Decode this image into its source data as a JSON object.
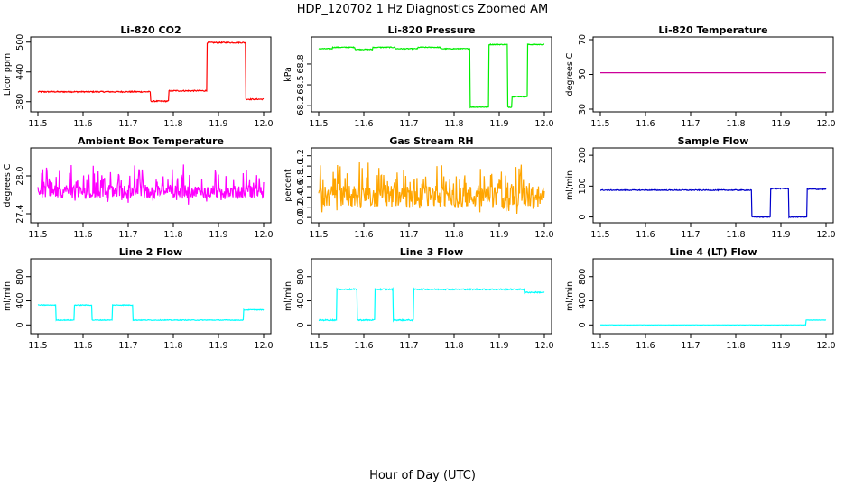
{
  "figure": {
    "title": "HDP_120702  1 Hz Diagnostics Zoomed AM",
    "xlabel": "Hour of Day (UTC)"
  },
  "chart_data": [
    {
      "type": "line",
      "title": "Li-820 CO2",
      "ylabel": "Licor ppm",
      "color": "#ff0000",
      "xlim": [
        11.5,
        12.0
      ],
      "ylim": [
        365,
        505
      ],
      "xticks": [
        "11.5",
        "11.6",
        "11.7",
        "11.8",
        "11.9",
        "12.0"
      ],
      "yticks": [
        "380",
        "440",
        "500"
      ],
      "steps": [
        [
          11.5,
          11.75,
          400
        ],
        [
          11.75,
          11.79,
          381
        ],
        [
          11.79,
          11.875,
          402
        ],
        [
          11.875,
          11.96,
          499
        ],
        [
          11.96,
          12.0,
          385
        ]
      ],
      "noise": 1.2,
      "spikes": 0
    },
    {
      "type": "line",
      "title": "Li-820 Pressure",
      "ylabel": "kPa",
      "color": "#00ee00",
      "xlim": [
        11.5,
        12.0
      ],
      "ylim": [
        68.15,
        69.15
      ],
      "xticks": [
        "11.5",
        "11.6",
        "11.7",
        "11.8",
        "11.9",
        "12.0"
      ],
      "yticks": [
        "68.2",
        "68.5",
        "68.8"
      ],
      "steps": [
        [
          11.5,
          11.53,
          69.02
        ],
        [
          11.53,
          11.58,
          69.04
        ],
        [
          11.58,
          11.62,
          69.01
        ],
        [
          11.62,
          11.67,
          69.04
        ],
        [
          11.67,
          11.72,
          69.02
        ],
        [
          11.72,
          11.77,
          69.04
        ],
        [
          11.77,
          11.835,
          69.02
        ],
        [
          11.835,
          11.877,
          68.18
        ],
        [
          11.877,
          11.918,
          69.08
        ],
        [
          11.918,
          11.928,
          68.18
        ],
        [
          11.928,
          11.963,
          68.33
        ],
        [
          11.963,
          12.0,
          69.08
        ]
      ],
      "noise": 0.006,
      "spikes": 0
    },
    {
      "type": "line",
      "title": "Li-820 Temperature",
      "ylabel": "degrees C",
      "color": "#cc0099",
      "xlim": [
        11.5,
        12.0
      ],
      "ylim": [
        30,
        70
      ],
      "xticks": [
        "11.5",
        "11.6",
        "11.7",
        "11.8",
        "11.9",
        "12.0"
      ],
      "yticks": [
        "30",
        "50",
        "70"
      ],
      "steps": [
        [
          11.5,
          12.0,
          51
        ]
      ],
      "noise": 0,
      "spikes": 0
    },
    {
      "type": "line",
      "title": "Ambient Box Temperature",
      "ylabel": "degrees C",
      "color": "#ff00ff",
      "xlim": [
        11.5,
        12.0
      ],
      "ylim": [
        27.3,
        28.4
      ],
      "xticks": [
        "11.5",
        "11.6",
        "11.7",
        "11.8",
        "11.9",
        "12.0"
      ],
      "yticks": [
        "27.4",
        "28.0"
      ],
      "steps": [
        [
          11.5,
          12.0,
          27.75
        ]
      ],
      "noise": 0.1,
      "spikes": 0.35
    },
    {
      "type": "line",
      "title": "Gas Stream RH",
      "ylabel": "percent",
      "color": "#ffa500",
      "xlim": [
        11.5,
        12.0
      ],
      "ylim": [
        -0.05,
        1.3
      ],
      "xticks": [
        "11.5",
        "11.6",
        "11.7",
        "11.8",
        "11.9",
        "12.0"
      ],
      "yticks": [
        "0.0",
        "0.2",
        "0.4",
        "0.6",
        "0.8",
        "1.0",
        "1.2"
      ],
      "steps": [
        [
          11.5,
          12.0,
          0.4
        ]
      ],
      "noise": 0.22,
      "spikes": 0.5
    },
    {
      "type": "line",
      "title": "Sample Flow",
      "ylabel": "ml/min",
      "color": "#0000cc",
      "xlim": [
        11.5,
        12.0
      ],
      "ylim": [
        -10,
        215
      ],
      "xticks": [
        "11.5",
        "11.6",
        "11.7",
        "11.8",
        "11.9",
        "12.0"
      ],
      "yticks": [
        "0",
        "100",
        "200"
      ],
      "steps": [
        [
          11.5,
          11.835,
          87
        ],
        [
          11.835,
          11.877,
          0
        ],
        [
          11.877,
          11.917,
          92
        ],
        [
          11.917,
          11.958,
          0
        ],
        [
          11.958,
          12.0,
          90
        ]
      ],
      "noise": 1.5,
      "spikes": 0
    },
    {
      "type": "line",
      "title": "Line 2 Flow",
      "ylabel": "ml/min",
      "color": "#00ffff",
      "xlim": [
        11.5,
        12.0
      ],
      "ylim": [
        -100,
        1050
      ],
      "xticks": [
        "11.5",
        "11.6",
        "11.7",
        "11.8",
        "11.9",
        "12.0"
      ],
      "yticks": [
        "0",
        "400",
        "800"
      ],
      "steps": [
        [
          11.5,
          11.54,
          330
        ],
        [
          11.54,
          11.58,
          80
        ],
        [
          11.58,
          11.62,
          330
        ],
        [
          11.62,
          11.665,
          80
        ],
        [
          11.665,
          11.71,
          330
        ],
        [
          11.71,
          11.955,
          80
        ],
        [
          11.955,
          12.0,
          250
        ]
      ],
      "noise": 6,
      "spikes": 0
    },
    {
      "type": "line",
      "title": "Line 3 Flow",
      "ylabel": "ml/min",
      "color": "#00ffff",
      "xlim": [
        11.5,
        12.0
      ],
      "ylim": [
        -100,
        1050
      ],
      "xticks": [
        "11.5",
        "11.6",
        "11.7",
        "11.8",
        "11.9",
        "12.0"
      ],
      "yticks": [
        "0",
        "400",
        "800"
      ],
      "steps": [
        [
          11.5,
          11.54,
          80
        ],
        [
          11.54,
          11.585,
          590
        ],
        [
          11.585,
          11.625,
          80
        ],
        [
          11.625,
          11.665,
          590
        ],
        [
          11.665,
          11.71,
          80
        ],
        [
          11.71,
          11.955,
          590
        ],
        [
          11.955,
          12.0,
          540
        ]
      ],
      "noise": 10,
      "spikes": 0
    },
    {
      "type": "line",
      "title": "Line 4 (LT) Flow",
      "ylabel": "ml/min",
      "color": "#00ffff",
      "xlim": [
        11.5,
        12.0
      ],
      "ylim": [
        -100,
        1050
      ],
      "xticks": [
        "11.5",
        "11.6",
        "11.7",
        "11.8",
        "11.9",
        "12.0"
      ],
      "yticks": [
        "0",
        "400",
        "800"
      ],
      "steps": [
        [
          11.5,
          11.955,
          0
        ],
        [
          11.955,
          12.0,
          80
        ]
      ],
      "noise": 2,
      "spikes": 0
    }
  ]
}
